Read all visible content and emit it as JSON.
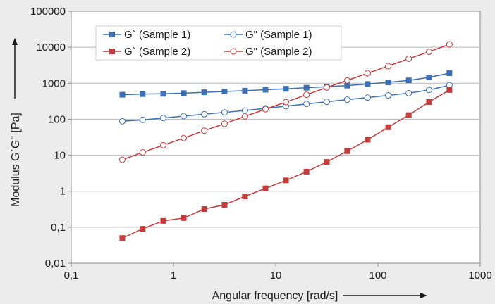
{
  "chart_data": {
    "type": "line",
    "xlabel": "Angular frequency [rad/s]",
    "ylabel": "Modulus G`G\" [Pa]",
    "x_scale": "log",
    "y_scale": "log",
    "xlim": [
      0.1,
      1000
    ],
    "ylim": [
      0.01,
      100000
    ],
    "x_ticks": [
      0.1,
      1,
      10,
      100,
      1000
    ],
    "x_tick_labels": [
      "0,1",
      "1",
      "10",
      "100",
      "1000"
    ],
    "y_ticks": [
      0.01,
      0.1,
      1,
      10,
      100,
      1000,
      10000,
      100000
    ],
    "y_tick_labels": [
      "0,01",
      "0,1",
      "1",
      "10",
      "100",
      "1000",
      "10000",
      "100000"
    ],
    "grid": "horizontal",
    "legend_position": "top-left",
    "x": [
      0.316,
      0.5,
      0.794,
      1.26,
      2.0,
      3.16,
      5.0,
      7.94,
      12.6,
      20.0,
      31.6,
      50.0,
      79.4,
      126,
      200,
      316,
      500
    ],
    "series": [
      {
        "name": "G` (Sample 1)",
        "color": "#3d6fb5",
        "marker": "filled-square",
        "values": [
          480,
          500,
          510,
          530,
          560,
          590,
          620,
          660,
          700,
          750,
          800,
          860,
          950,
          1060,
          1200,
          1450,
          1900
        ]
      },
      {
        "name": "G\" (Sample 1)",
        "color": "#3d6fb5",
        "marker": "open-circle",
        "values": [
          88,
          96,
          108,
          122,
          138,
          155,
          175,
          200,
          230,
          265,
          305,
          350,
          400,
          460,
          530,
          650,
          880
        ]
      },
      {
        "name": "G` (Sample 2)",
        "color": "#c43c3c",
        "marker": "filled-square",
        "values": [
          0.05,
          0.09,
          0.15,
          0.18,
          0.32,
          0.42,
          0.72,
          1.2,
          2.0,
          3.5,
          6.5,
          13,
          27,
          60,
          130,
          300,
          650
        ]
      },
      {
        "name": "G\" (Sample 2)",
        "color": "#c43c3c",
        "marker": "open-circle",
        "values": [
          7.5,
          12,
          19,
          30,
          48,
          75,
          120,
          190,
          300,
          480,
          760,
          1200,
          1900,
          3000,
          4800,
          7500,
          12000
        ]
      }
    ]
  }
}
